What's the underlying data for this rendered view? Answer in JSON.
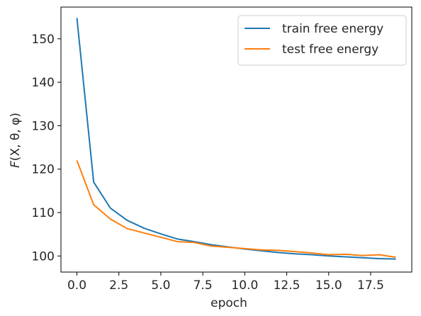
{
  "chart_data": {
    "type": "line",
    "xlabel": "epoch",
    "ylabel_parts": [
      "F",
      "(X, θ, φ)"
    ],
    "xlim": [
      -0.95,
      19.95
    ],
    "ylim": [
      96.3,
      157.3
    ],
    "xticks": [
      0.0,
      2.5,
      5.0,
      7.5,
      10.0,
      12.5,
      15.0,
      17.5
    ],
    "xtick_labels": [
      "0.0",
      "2.5",
      "5.0",
      "7.5",
      "10.0",
      "12.5",
      "15.0",
      "17.5"
    ],
    "yticks": [
      100,
      110,
      120,
      130,
      140,
      150
    ],
    "ytick_labels": [
      "100",
      "110",
      "120",
      "130",
      "140",
      "150"
    ],
    "grid": false,
    "legend_position": "top-right",
    "x": [
      0,
      1,
      2,
      3,
      4,
      5,
      6,
      7,
      8,
      9,
      10,
      11,
      12,
      13,
      14,
      15,
      16,
      17,
      18,
      19
    ],
    "series": [
      {
        "name": "train free energy",
        "color": "#1f77b4",
        "values": [
          154.8,
          117.0,
          111.0,
          108.2,
          106.4,
          105.1,
          103.9,
          103.3,
          102.6,
          102.1,
          101.6,
          101.2,
          100.8,
          100.5,
          100.3,
          100.0,
          99.8,
          99.6,
          99.4,
          99.3
        ]
      },
      {
        "name": "test free energy",
        "color": "#ff7f0e",
        "values": [
          122.0,
          111.8,
          108.5,
          106.3,
          105.3,
          104.3,
          103.3,
          103.1,
          102.3,
          102.0,
          101.7,
          101.4,
          101.3,
          101.0,
          100.7,
          100.3,
          100.4,
          100.1,
          100.3,
          99.7
        ]
      }
    ]
  }
}
